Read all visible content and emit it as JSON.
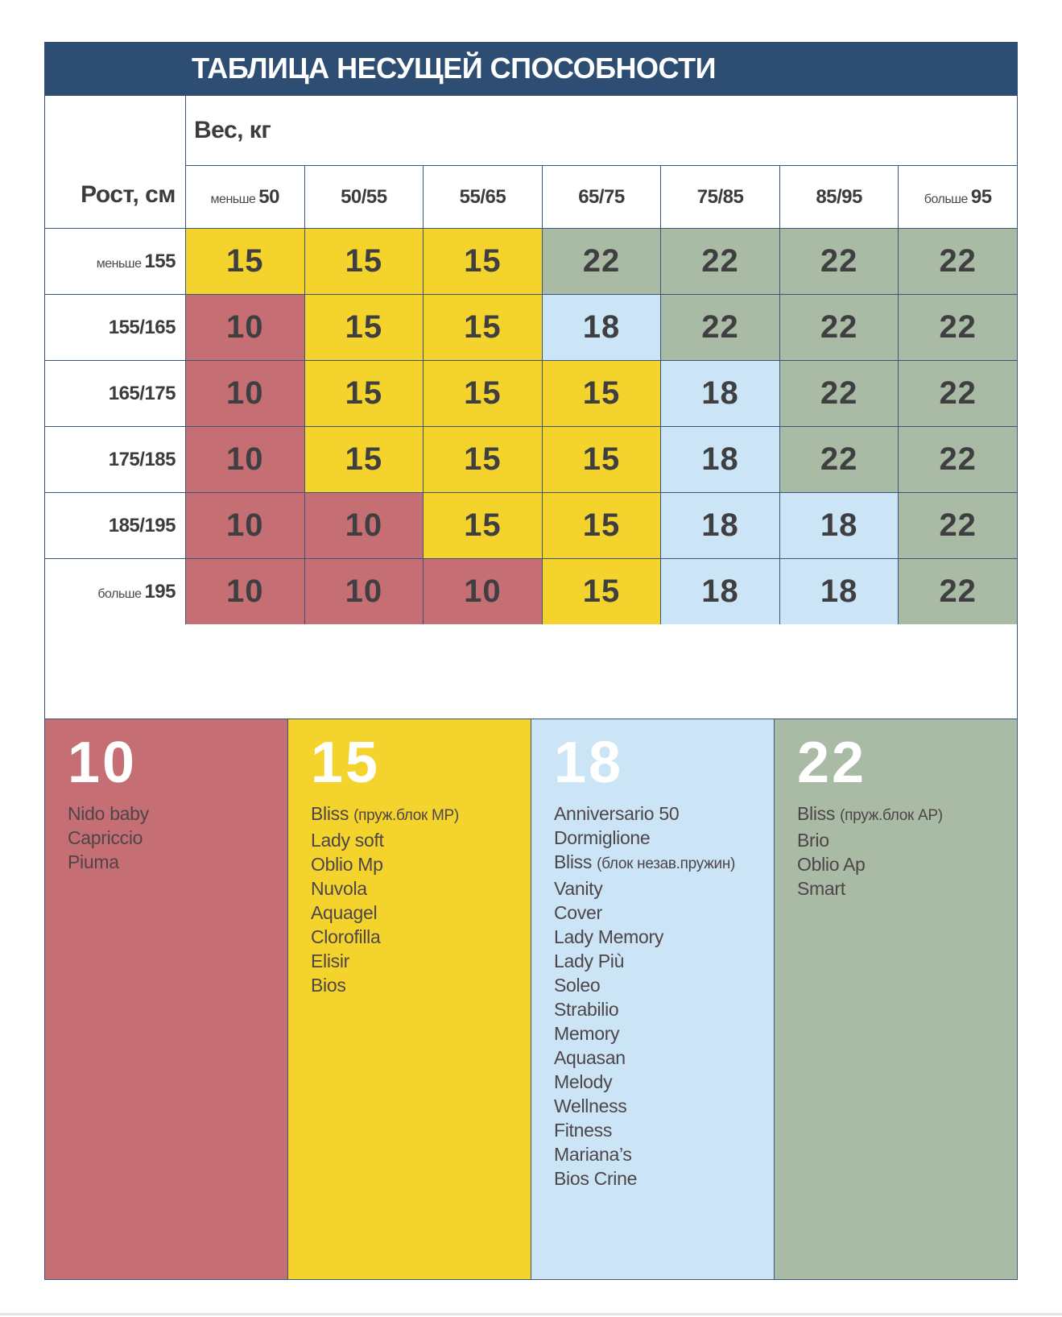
{
  "title": "ТАБЛИЦА НЕСУЩЕЙ СПОСОБНОСТИ",
  "colors": {
    "header_navy": "#2e4d72",
    "grid_border": "#3b5578",
    "cell_text": "#3f3f41",
    "levels": {
      "10": "#c56e73",
      "15": "#f4d32d",
      "18": "#cbe4f6",
      "22": "#a9bba5"
    }
  },
  "table": {
    "weight_axis_label": "Вес, кг",
    "height_axis_label": "Рост, см",
    "columns": [
      {
        "prefix": "меньше",
        "label": "50"
      },
      {
        "prefix": "",
        "label": "50/55"
      },
      {
        "prefix": "",
        "label": "55/65"
      },
      {
        "prefix": "",
        "label": "65/75"
      },
      {
        "prefix": "",
        "label": "75/85"
      },
      {
        "prefix": "",
        "label": "85/95"
      },
      {
        "prefix": "больше",
        "label": "95"
      }
    ],
    "rows": [
      {
        "prefix": "меньше",
        "label": "155",
        "values": [
          15,
          15,
          15,
          22,
          22,
          22,
          22
        ]
      },
      {
        "prefix": "",
        "label": "155/165",
        "values": [
          10,
          15,
          15,
          18,
          22,
          22,
          22
        ]
      },
      {
        "prefix": "",
        "label": "165/175",
        "values": [
          10,
          15,
          15,
          15,
          18,
          22,
          22
        ]
      },
      {
        "prefix": "",
        "label": "175/185",
        "values": [
          10,
          15,
          15,
          15,
          18,
          22,
          22
        ]
      },
      {
        "prefix": "",
        "label": "185/195",
        "values": [
          10,
          10,
          15,
          15,
          18,
          18,
          22
        ]
      },
      {
        "prefix": "больше",
        "label": "195",
        "values": [
          10,
          10,
          10,
          15,
          18,
          18,
          22
        ]
      }
    ]
  },
  "legend": [
    {
      "value": "10",
      "color": "#c56e73",
      "items": [
        "Nido baby",
        "Capriccio",
        "Piuma"
      ]
    },
    {
      "value": "15",
      "color": "#f4d32d",
      "items": [
        "Bliss (пруж.блок МР)",
        "Lady soft",
        "Oblio Mp",
        "Nuvola",
        "Aquagel",
        "Clorofilla",
        "Elisir",
        "Bios"
      ]
    },
    {
      "value": "18",
      "color": "#cbe4f6",
      "items": [
        "Anniversario 50",
        "Dormiglione",
        "Bliss (блок незав.пружин)",
        "Vanity",
        "Cover",
        "Lady Memory",
        "Lady Più",
        "Soleo",
        "Strabilio",
        "Memory",
        "Aquasan",
        "Melody",
        "Wellness",
        "Fitness",
        "Mariana’s",
        "Bios Crine"
      ]
    },
    {
      "value": "22",
      "color": "#a9bba5",
      "items": [
        "Bliss (пруж.блок АР)",
        "Brio",
        "Oblio Ap",
        "Smart"
      ]
    }
  ],
  "chart_data": {
    "type": "table",
    "title": "ТАБЛИЦА НЕСУЩЕЙ СПОСОБНОСТИ",
    "xlabel": "Вес, кг",
    "ylabel": "Рост, см",
    "columns": [
      "меньше 50",
      "50/55",
      "55/65",
      "65/75",
      "75/85",
      "85/95",
      "больше 95"
    ],
    "rows": [
      "меньше 155",
      "155/165",
      "165/175",
      "175/185",
      "185/195",
      "больше 195"
    ],
    "values": [
      [
        15,
        15,
        15,
        22,
        22,
        22,
        22
      ],
      [
        10,
        15,
        15,
        18,
        22,
        22,
        22
      ],
      [
        10,
        15,
        15,
        15,
        18,
        22,
        22
      ],
      [
        10,
        15,
        15,
        15,
        18,
        22,
        22
      ],
      [
        10,
        10,
        15,
        15,
        18,
        18,
        22
      ],
      [
        10,
        10,
        10,
        15,
        18,
        18,
        22
      ]
    ],
    "legend_groups": {
      "10": [
        "Nido baby",
        "Capriccio",
        "Piuma"
      ],
      "15": [
        "Bliss (пруж.блок МР)",
        "Lady soft",
        "Oblio Mp",
        "Nuvola",
        "Aquagel",
        "Clorofilla",
        "Elisir",
        "Bios"
      ],
      "18": [
        "Anniversario 50",
        "Dormiglione",
        "Bliss (блок незав.пружин)",
        "Vanity",
        "Cover",
        "Lady Memory",
        "Lady Più",
        "Soleo",
        "Strabilio",
        "Memory",
        "Aquasan",
        "Melody",
        "Wellness",
        "Fitness",
        "Mariana’s",
        "Bios Crine"
      ],
      "22": [
        "Bliss (пруж.блок АР)",
        "Brio",
        "Oblio Ap",
        "Smart"
      ]
    },
    "cell_colors": {
      "10": "#c56e73",
      "15": "#f4d32d",
      "18": "#cbe4f6",
      "22": "#a9bba5"
    }
  }
}
